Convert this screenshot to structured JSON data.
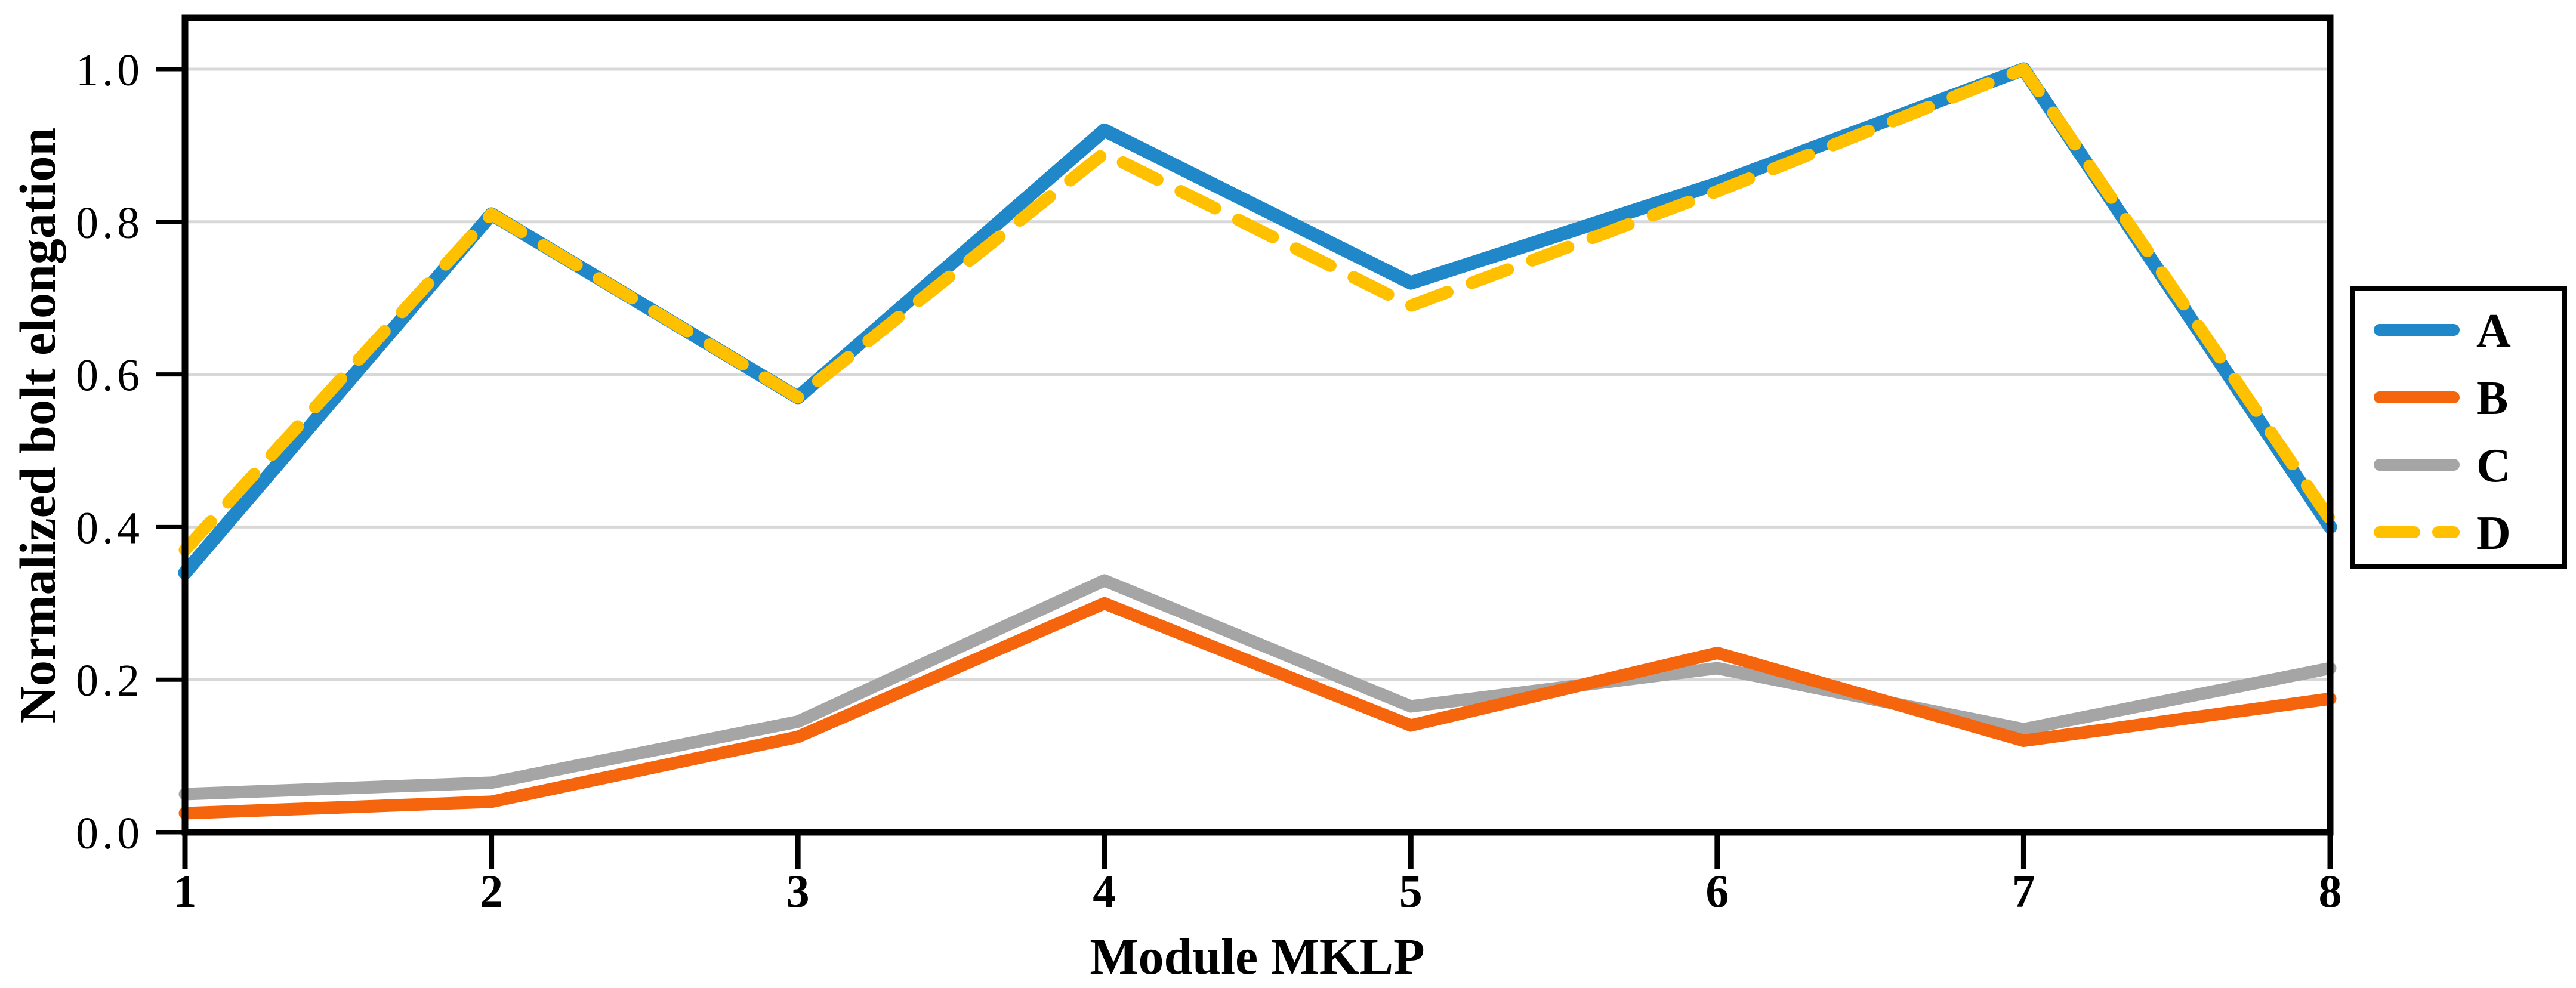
{
  "chart_data": {
    "type": "line",
    "title": "",
    "xlabel": "Module MKLP",
    "ylabel": "Normalized bolt elongation",
    "x": [
      1,
      2,
      3,
      4,
      5,
      6,
      7,
      8
    ],
    "x_tick_labels": [
      "1",
      "2",
      "3",
      "4",
      "5",
      "6",
      "7",
      "8"
    ],
    "y_ticks": [
      0.0,
      0.2,
      0.4,
      0.6,
      0.8,
      1.0
    ],
    "y_tick_labels": [
      "0.0",
      "0.2",
      "0.4",
      "0.6",
      "0.8",
      "1.0"
    ],
    "ylim": [
      0.0,
      1.07
    ],
    "grid": "horizontal light gray lines at each 0.2",
    "frame": "black border on all four sides of plot area",
    "legend_position": "right, boxed",
    "series": [
      {
        "name": "A",
        "color": "#2087C8",
        "style": "solid",
        "values": [
          0.34,
          0.81,
          0.57,
          0.92,
          0.72,
          0.85,
          1.0,
          0.4
        ]
      },
      {
        "name": "B",
        "color": "#F5650D",
        "style": "solid",
        "values": [
          0.025,
          0.04,
          0.125,
          0.3,
          0.14,
          0.235,
          0.12,
          0.175
        ]
      },
      {
        "name": "C",
        "color": "#A5A5A5",
        "style": "solid",
        "values": [
          0.05,
          0.065,
          0.145,
          0.33,
          0.165,
          0.215,
          0.135,
          0.215
        ]
      },
      {
        "name": "D",
        "color": "#FFC000",
        "style": "dashed",
        "values": [
          0.37,
          0.81,
          0.57,
          0.89,
          0.69,
          0.84,
          1.0,
          0.41
        ]
      }
    ],
    "colors": {
      "gridline": "#D8D8D8",
      "axis": "#000000",
      "background": "#FFFFFF"
    }
  }
}
